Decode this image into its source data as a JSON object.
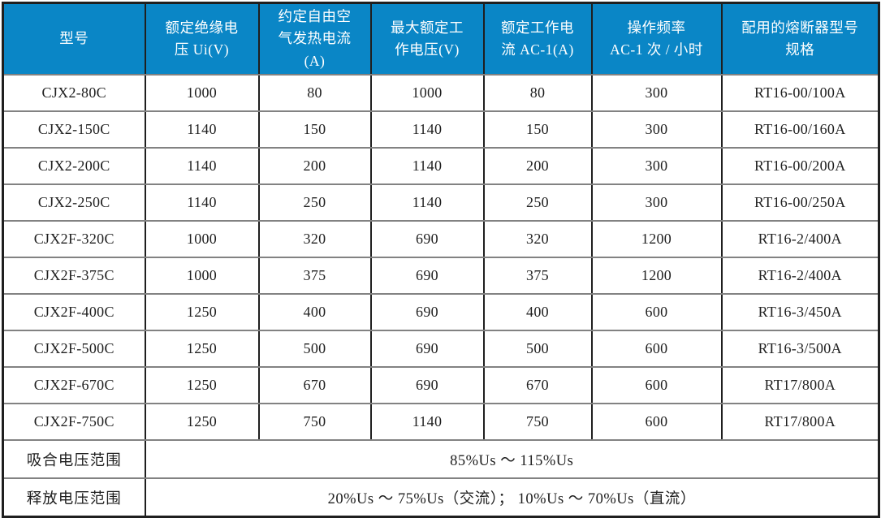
{
  "colors": {
    "header_bg": "#0a86c6",
    "header_text": "#ffffff",
    "grid_vertical": "#1f1f1f",
    "grid_horizontal": "#828282",
    "body_text": "#1f1f1f"
  },
  "table": {
    "columns": [
      "型号",
      "额定绝缘电\n压 Ui(V)",
      "约定自由空\n气发热电流\n(A)",
      "最大额定工\n作电压(V)",
      "额定工作电\n流 AC-1(A)",
      "操作频率\nAC-1 次 / 小时",
      "配用的熔断器型号\n规格"
    ],
    "rows": [
      [
        "CJX2-80C",
        "1000",
        "80",
        "1000",
        "80",
        "300",
        "RT16-00/100A"
      ],
      [
        "CJX2-150C",
        "1140",
        "150",
        "1140",
        "150",
        "300",
        "RT16-00/160A"
      ],
      [
        "CJX2-200C",
        "1140",
        "200",
        "1140",
        "200",
        "300",
        "RT16-00/200A"
      ],
      [
        "CJX2-250C",
        "1140",
        "250",
        "1140",
        "250",
        "300",
        "RT16-00/250A"
      ],
      [
        "CJX2F-320C",
        "1000",
        "320",
        "690",
        "320",
        "1200",
        "RT16-2/400A"
      ],
      [
        "CJX2F-375C",
        "1000",
        "375",
        "690",
        "375",
        "1200",
        "RT16-2/400A"
      ],
      [
        "CJX2F-400C",
        "1250",
        "400",
        "690",
        "400",
        "600",
        "RT16-3/450A"
      ],
      [
        "CJX2F-500C",
        "1250",
        "500",
        "690",
        "500",
        "600",
        "RT16-3/500A"
      ],
      [
        "CJX2F-670C",
        "1250",
        "670",
        "690",
        "670",
        "600",
        "RT17/800A"
      ],
      [
        "CJX2F-750C",
        "1250",
        "750",
        "1140",
        "750",
        "600",
        "RT17/800A"
      ]
    ],
    "footer_rows": [
      {
        "label": "吸合电压范围",
        "value": "85%Us ～ 115%Us"
      },
      {
        "label": "释放电压范围",
        "value": "20%Us ～ 75%Us（交流）； 10%Us ～ 70%Us（直流）"
      }
    ]
  }
}
